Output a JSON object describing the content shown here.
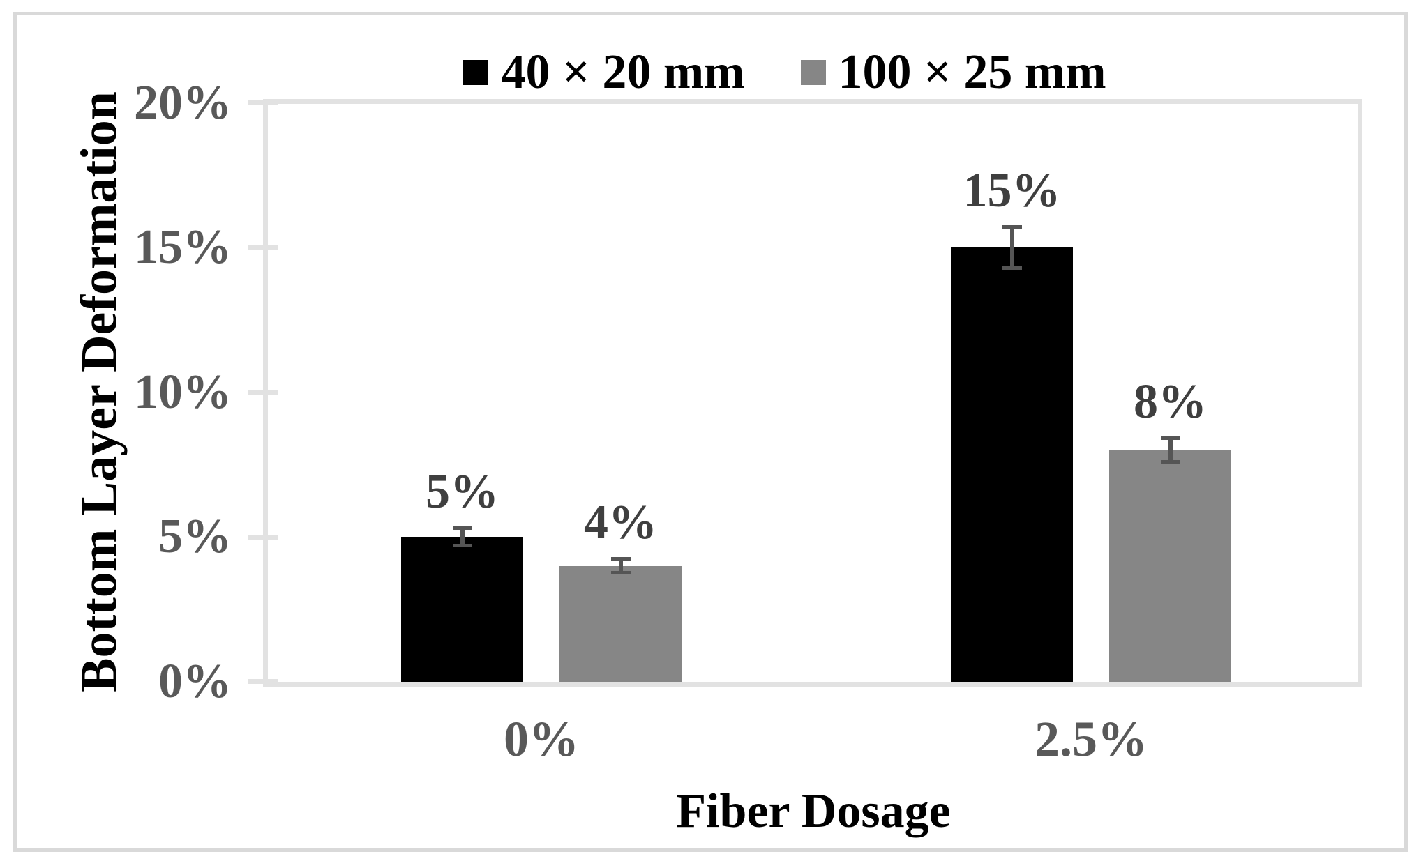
{
  "chart_data": {
    "type": "bar",
    "title": "",
    "categories": [
      "0%",
      "2.5%"
    ],
    "series": [
      {
        "name": "40 × 20 mm",
        "color": "#000000",
        "values": [
          5,
          15
        ],
        "data_labels": [
          "5%",
          "15%"
        ],
        "error_bars": [
          0.3,
          0.7
        ]
      },
      {
        "name": "100 × 25 mm",
        "color": "#868686",
        "values": [
          4,
          8
        ],
        "data_labels": [
          "4%",
          "8%"
        ],
        "error_bars": [
          0.25,
          0.4
        ]
      }
    ],
    "xlabel": "Fiber Dosage",
    "ylabel": "Bottom Layer Deformation",
    "ylim": [
      0,
      20
    ],
    "ytick_values": [
      0,
      5,
      10,
      15,
      20
    ],
    "ytick_labels": [
      "0%",
      "5%",
      "10%",
      "15%",
      "20%"
    ],
    "grid": false,
    "legend_position": "top-center",
    "colors": {
      "axis_line": "#e2e2e2",
      "tick_label": "#595959",
      "data_label": "#3f3f3f",
      "error_bar": "#555555",
      "frame_border": "#d9d9d9",
      "background": "#ffffff"
    }
  }
}
